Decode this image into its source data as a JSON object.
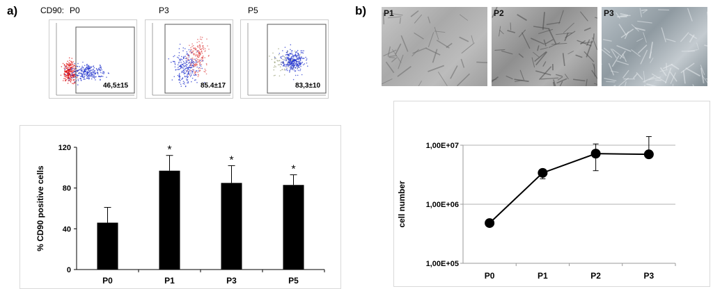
{
  "panel_a": {
    "label": "a)",
    "flow": {
      "title_prefix": "CD90:",
      "plots": [
        {
          "passage": "P0",
          "value": "46,5±15"
        },
        {
          "passage": "P3",
          "value": "85.4±17"
        },
        {
          "passage": "P5",
          "value": "83,3±10"
        }
      ]
    }
  },
  "panel_b": {
    "label": "b)",
    "photos": [
      "P1",
      "P2",
      "P3"
    ]
  },
  "chart_data": [
    {
      "type": "bar",
      "categories": [
        "P0",
        "P1",
        "P3",
        "P5"
      ],
      "values": [
        46,
        97,
        85,
        83
      ],
      "errors": [
        15,
        15,
        17,
        10
      ],
      "significance": [
        "",
        "*",
        "*",
        "*"
      ],
      "ylabel": "% CD90 positive cells",
      "yticks": [
        "0",
        "40",
        "80",
        "120"
      ],
      "ylim": [
        0,
        120
      ],
      "color": "#000000"
    },
    {
      "type": "line",
      "scale": "log",
      "categories": [
        "P0",
        "P1",
        "P2",
        "P3"
      ],
      "values": [
        480000,
        3400000,
        7200000,
        7000000
      ],
      "error_high": [
        null,
        3900000,
        10500000,
        14000000
      ],
      "error_low": [
        null,
        2700000,
        3700000,
        null
      ],
      "ylabel": "cell number",
      "yticks": [
        "1,00E+05",
        "1,00E+06",
        "1,00E+07"
      ],
      "ylim": [
        100000,
        10000000
      ],
      "grid": true,
      "color": "#000000"
    }
  ]
}
